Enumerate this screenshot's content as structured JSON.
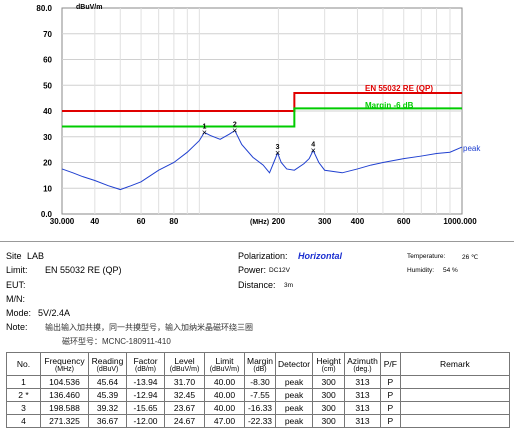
{
  "chart_data": {
    "type": "line",
    "ylabel": "dBuV/m",
    "xlabel": "(MHz)",
    "xscale": "log",
    "xlim": [
      30,
      1000
    ],
    "ylim": [
      0,
      80
    ],
    "y_ticks": [
      "0.0",
      "10",
      "20",
      "30",
      "40",
      "50",
      "60",
      "70",
      "80.0"
    ],
    "x_ticks": [
      {
        "v": 30,
        "label": "30.000"
      },
      {
        "v": 40,
        "label": "40"
      },
      {
        "v": 60,
        "label": "60"
      },
      {
        "v": 80,
        "label": "80"
      },
      {
        "v": 200,
        "label": "200"
      },
      {
        "v": 300,
        "label": "300"
      },
      {
        "v": 400,
        "label": "400"
      },
      {
        "v": 600,
        "label": "600"
      },
      {
        "v": 1000,
        "label": "1000.000"
      }
    ],
    "grid": true,
    "limit_line": {
      "label": "EN 55032 RE (QP)",
      "color": "#e00000",
      "points": [
        [
          30,
          40
        ],
        [
          230,
          40
        ],
        [
          230,
          47
        ],
        [
          1000,
          47
        ]
      ]
    },
    "margin_line": {
      "label": "Margin -6 dB",
      "color": "#00cc00",
      "points": [
        [
          30,
          34
        ],
        [
          230,
          34
        ],
        [
          230,
          41
        ],
        [
          1000,
          41
        ]
      ]
    },
    "series": [
      {
        "name": "peak",
        "color": "#2040d0",
        "x": [
          30,
          33,
          36,
          40,
          45,
          50,
          55,
          60,
          70,
          80,
          90,
          100,
          104.5,
          110,
          120,
          130,
          136.5,
          145,
          160,
          175,
          185,
          192,
          198.6,
          205,
          215,
          230,
          250,
          262,
          271.3,
          285,
          300,
          350,
          400,
          450,
          500,
          600,
          700,
          800,
          900,
          1000
        ],
        "y": [
          17.5,
          16,
          14.5,
          13,
          11,
          9.5,
          11,
          12.5,
          17,
          20,
          24,
          28.5,
          31.7,
          30.5,
          29,
          31,
          32.4,
          27,
          22,
          19,
          16,
          20,
          23.7,
          20,
          17.5,
          17,
          19.5,
          21.5,
          24.7,
          20,
          17,
          16,
          17.5,
          19,
          20,
          21.5,
          22.5,
          23.5,
          24,
          26
        ]
      }
    ],
    "markers": [
      {
        "label": "1",
        "x": 104.536,
        "y": 31.7
      },
      {
        "label": "2",
        "x": 136.46,
        "y": 32.45
      },
      {
        "label": "3",
        "x": 198.588,
        "y": 23.67
      },
      {
        "label": "4",
        "x": 271.325,
        "y": 24.67
      }
    ]
  },
  "info": {
    "site_label": "Site",
    "site_value": "LAB",
    "limit_label": "Limit:",
    "limit_value": "EN 55032 RE (QP)",
    "eut_label": "EUT:",
    "mn_label": "M/N:",
    "mode_label": "Mode:",
    "mode_value": "5V/2.4A",
    "note_label": "Note:",
    "note_line1": "输出输入加共摸，同一共摸型号，输入加纳米晶磁环绕三圈",
    "note_line2": "磁环型号：MCNC-180911-410",
    "polarization_label": "Polarization:",
    "polarization_value": "Horizontal",
    "power_label": "Power:",
    "power_value": "DC12V",
    "distance_label": "Distance:",
    "distance_value": "3m",
    "temperature_label": "Temperature:",
    "temperature_value": "26 ℃",
    "humidity_label": "Humidity:",
    "humidity_value": "54 %"
  },
  "table": {
    "headers": [
      {
        "t": "No.",
        "u": ""
      },
      {
        "t": "Frequency",
        "u": "(MHz)"
      },
      {
        "t": "Reading",
        "u": "(dBuV)"
      },
      {
        "t": "Factor",
        "u": "(dB/m)"
      },
      {
        "t": "Level",
        "u": "(dBuV/m)"
      },
      {
        "t": "Limit",
        "u": "(dBuV/m)"
      },
      {
        "t": "Margin",
        "u": "(dB)"
      },
      {
        "t": "Detector",
        "u": ""
      },
      {
        "t": "Height",
        "u": "(cm)"
      },
      {
        "t": "Azimuth",
        "u": "(deg.)"
      },
      {
        "t": "P/F",
        "u": ""
      },
      {
        "t": "Remark",
        "u": ""
      }
    ],
    "rows": [
      [
        "1",
        "104.536",
        "45.64",
        "-13.94",
        "31.70",
        "40.00",
        "-8.30",
        "peak",
        "300",
        "313",
        "P",
        ""
      ],
      [
        "2 *",
        "136.460",
        "45.39",
        "-12.94",
        "32.45",
        "40.00",
        "-7.55",
        "peak",
        "300",
        "313",
        "P",
        ""
      ],
      [
        "3",
        "198.588",
        "39.32",
        "-15.65",
        "23.67",
        "40.00",
        "-16.33",
        "peak",
        "300",
        "313",
        "P",
        ""
      ],
      [
        "4",
        "271.325",
        "36.67",
        "-12.00",
        "24.67",
        "47.00",
        "-22.33",
        "peak",
        "300",
        "313",
        "P",
        ""
      ]
    ]
  }
}
